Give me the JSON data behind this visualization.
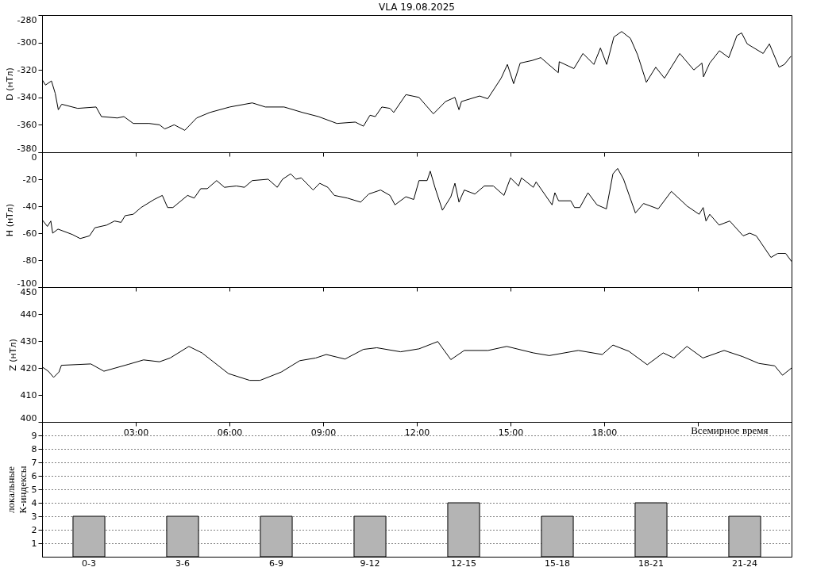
{
  "chart_data": [
    {
      "type": "line",
      "title": "VLA   19.08.2025",
      "ylabel": "D (нТл)",
      "xlim": [
        0,
        24
      ],
      "ylim": [
        -380,
        -280
      ],
      "yticks": [
        -380,
        -360,
        -340,
        -320,
        -300,
        -280
      ],
      "tick_labels": "y",
      "grid": false,
      "xticks": [
        {
          "value": 3,
          "label": null
        },
        {
          "value": 6,
          "label": null
        },
        {
          "value": 9,
          "label": null
        },
        {
          "value": 12,
          "label": null
        },
        {
          "value": 15,
          "label": null
        },
        {
          "value": 18,
          "label": null
        },
        {
          "value": 21,
          "label": null
        }
      ],
      "series": [
        {
          "color": "#000000",
          "x": [
            0,
            0.11,
            0.3,
            0.42,
            0.52,
            0.63,
            1.14,
            1.73,
            1.9,
            2.41,
            2.62,
            2.92,
            3.43,
            3.76,
            3.93,
            4.23,
            4.57,
            4.95,
            5.37,
            6.01,
            6.73,
            7.15,
            7.75,
            8.34,
            8.85,
            9.44,
            10.03,
            10.29,
            10.5,
            10.67,
            10.88,
            11.14,
            11.26,
            11.65,
            12.07,
            12.53,
            12.92,
            13.22,
            13.35,
            13.43,
            14.01,
            14.27,
            14.7,
            14.9,
            15.1,
            15.31,
            15.71,
            15.97,
            16.22,
            16.53,
            16.56,
            17.03,
            17.32,
            17.67,
            17.88,
            18.08,
            18.31,
            18.56,
            18.84,
            19.07,
            19.35,
            19.65,
            19.93,
            20.42,
            20.87,
            21.13,
            21.18,
            21.38,
            21.69,
            21.99,
            22.25,
            22.4,
            22.58,
            23.09,
            23.29,
            23.6,
            23.77,
            23.98
          ],
          "values": [
            -327,
            -331,
            -328,
            -337,
            -349,
            -345,
            -348,
            -347,
            -354,
            -355,
            -354,
            -359,
            -359,
            -360,
            -363,
            -360,
            -364,
            -355,
            -351,
            -347,
            -344,
            -347,
            -347,
            -351,
            -354,
            -359,
            -358,
            -361,
            -353,
            -354,
            -347,
            -348,
            -351,
            -338,
            -340,
            -352,
            -343,
            -340,
            -349,
            -343,
            -339,
            -341,
            -326,
            -316,
            -330,
            -315,
            -313,
            -311,
            -316,
            -322,
            -314,
            -319,
            -308,
            -316,
            -304,
            -316,
            -296,
            -292,
            -297,
            -309,
            -329,
            -318,
            -326,
            -308,
            -320,
            -315,
            -325,
            -315,
            -306,
            -311,
            -295,
            -293,
            -301,
            -308,
            -301,
            -318,
            -316,
            -310
          ]
        }
      ]
    },
    {
      "type": "line",
      "ylabel": "H (нТл)",
      "xlim": [
        0,
        24
      ],
      "ylim": [
        -100,
        0
      ],
      "yticks": [
        -100,
        -80,
        -60,
        -40,
        -20,
        0
      ],
      "tick_labels": "y",
      "grid": false,
      "xticks": [
        {
          "value": 3,
          "label": null
        },
        {
          "value": 6,
          "label": null
        },
        {
          "value": 9,
          "label": null
        },
        {
          "value": 12,
          "label": null
        },
        {
          "value": 15,
          "label": null
        },
        {
          "value": 18,
          "label": null
        },
        {
          "value": 21,
          "label": null
        }
      ],
      "series": [
        {
          "color": "#000000",
          "x": [
            0,
            0.17,
            0.28,
            0.34,
            0.51,
            0.97,
            1.22,
            1.52,
            1.69,
            2.07,
            2.32,
            2.53,
            2.66,
            2.92,
            3.17,
            3.59,
            3.85,
            4.02,
            4.19,
            4.66,
            4.87,
            5.08,
            5.29,
            5.59,
            5.84,
            6.22,
            6.48,
            6.73,
            7.24,
            7.53,
            7.7,
            7.96,
            8.13,
            8.3,
            8.68,
            8.89,
            9.15,
            9.36,
            9.78,
            10.2,
            10.46,
            10.84,
            11.14,
            11.3,
            11.65,
            11.9,
            12.07,
            12.33,
            12.43,
            12.58,
            12.82,
            13.09,
            13.22,
            13.35,
            13.52,
            13.86,
            14.16,
            14.45,
            14.79,
            15.0,
            15.26,
            15.35,
            15.73,
            15.82,
            16.33,
            16.42,
            16.54,
            16.93,
            17.05,
            17.22,
            17.48,
            17.77,
            18.07,
            18.28,
            18.43,
            18.62,
            19.0,
            19.26,
            19.73,
            20.15,
            20.66,
            21.04,
            21.17,
            21.26,
            21.38,
            21.68,
            22.02,
            22.45,
            22.66,
            22.87,
            23.34,
            23.56,
            23.81,
            24.0
          ],
          "values": [
            -50,
            -55,
            -51,
            -60,
            -57,
            -61,
            -64,
            -62,
            -56,
            -54,
            -51,
            -52,
            -47,
            -46,
            -41,
            -35,
            -32,
            -41,
            -41,
            -32,
            -34,
            -27,
            -27,
            -21,
            -26,
            -25,
            -26,
            -21,
            -20,
            -26,
            -20,
            -16,
            -20,
            -19,
            -28,
            -23,
            -26,
            -32,
            -34,
            -37,
            -31,
            -28,
            -32,
            -39,
            -33,
            -35,
            -21,
            -21,
            -14,
            -26,
            -43,
            -33,
            -23,
            -37,
            -28,
            -31,
            -25,
            -25,
            -32,
            -19,
            -25,
            -19,
            -26,
            -22,
            -39,
            -30,
            -36,
            -36,
            -41,
            -41,
            -30,
            -39,
            -42,
            -16,
            -12,
            -20,
            -45,
            -38,
            -42,
            -29,
            -40,
            -46,
            -41,
            -51,
            -46,
            -54,
            -51,
            -62,
            -60,
            -62,
            -78,
            -75,
            -75,
            -81
          ]
        }
      ]
    },
    {
      "type": "line",
      "ylabel": "Z (нТл)",
      "xlabel": "Всемирное время",
      "xlim": [
        0,
        24
      ],
      "ylim": [
        400,
        450
      ],
      "yticks": [
        400,
        410,
        420,
        430,
        440,
        450
      ],
      "grid": false,
      "xticks": [
        {
          "value": 3,
          "label": "03:00"
        },
        {
          "value": 6,
          "label": "06:00"
        },
        {
          "value": 9,
          "label": "09:00"
        },
        {
          "value": 12,
          "label": "12:00"
        },
        {
          "value": 15,
          "label": "15:00"
        },
        {
          "value": 18,
          "label": "18:00"
        },
        {
          "value": 21,
          "label": null
        }
      ],
      "series": [
        {
          "color": "#000000",
          "x": [
            0,
            0.2,
            0.37,
            0.54,
            0.62,
            1.56,
            1.98,
            2.75,
            3.25,
            3.76,
            4.1,
            4.7,
            5.12,
            5.97,
            6.65,
            6.98,
            7.66,
            8.25,
            8.76,
            9.1,
            9.7,
            10.29,
            10.72,
            11.48,
            12.07,
            12.67,
            13.09,
            13.52,
            14.28,
            14.88,
            15.73,
            16.24,
            17.17,
            17.94,
            18.28,
            18.79,
            19.38,
            19.89,
            20.23,
            20.65,
            21.16,
            21.84,
            22.44,
            22.95,
            23.46,
            23.71,
            24.0
          ],
          "values": [
            420.4,
            418.8,
            416.5,
            418.5,
            421,
            421.5,
            418.8,
            421.3,
            423,
            422.3,
            423.7,
            428,
            425.6,
            417.9,
            415.4,
            415.4,
            418.5,
            422.7,
            423.7,
            425,
            423.3,
            426.9,
            427.5,
            426,
            427.1,
            429.8,
            423.1,
            426.5,
            426.5,
            428,
            425.6,
            424.6,
            426.5,
            425,
            428.5,
            426.2,
            421.2,
            425.6,
            423.7,
            428,
            423.7,
            426.5,
            424.2,
            421.7,
            420.8,
            417.3,
            420
          ]
        }
      ]
    },
    {
      "type": "bar",
      "ylabel": "локальные\nК-индексы",
      "categories": [
        "0-3",
        "3-6",
        "6-9",
        "9-12",
        "12-15",
        "15-18",
        "18-21",
        "21-24"
      ],
      "values": [
        3,
        3,
        3,
        3,
        4,
        3,
        4,
        3
      ],
      "color": "#b4b4b4",
      "ylim": [
        0,
        10
      ],
      "yticks": [
        1,
        2,
        3,
        4,
        5,
        6,
        7,
        8,
        9
      ],
      "grid": "y",
      "line_style": "dotted"
    }
  ]
}
